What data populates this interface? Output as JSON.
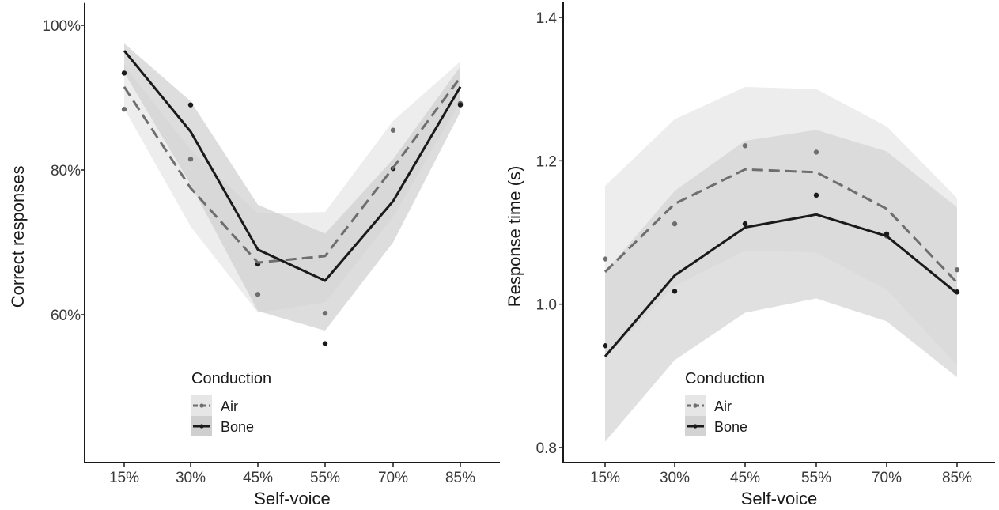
{
  "chart_data": [
    {
      "type": "line",
      "xlabel": "Self-voice",
      "ylabel": "Correct responses",
      "categories": [
        "15%",
        "30%",
        "45%",
        "55%",
        "70%",
        "85%"
      ],
      "ylim": [
        0.42,
        1.02
      ],
      "yticks": [
        0.6,
        0.8,
        1.0
      ],
      "ytick_labels": [
        "60%",
        "80%",
        "100%"
      ],
      "grid": false,
      "legend": {
        "title": "Conduction",
        "position": "bottom-left"
      },
      "series": [
        {
          "name": "Air",
          "style": "dashed",
          "color": "#6e6e6e",
          "band_color": "#e6e6e6",
          "fit": [
            0.915,
            0.775,
            0.672,
            0.681,
            0.803,
            0.928
          ],
          "lower": [
            0.885,
            0.722,
            0.603,
            0.617,
            0.735,
            0.895
          ],
          "upper": [
            0.945,
            0.828,
            0.74,
            0.742,
            0.868,
            0.95
          ],
          "points": [
            0.884,
            0.815,
            0.628,
            0.602,
            0.855,
            0.892
          ]
        },
        {
          "name": "Bone",
          "style": "solid",
          "color": "#1a1a1a",
          "band_color": "#cfcfcf",
          "fit": [
            0.965,
            0.853,
            0.69,
            0.647,
            0.757,
            0.915
          ],
          "lower": [
            0.935,
            0.78,
            0.605,
            0.578,
            0.7,
            0.88
          ],
          "upper": [
            0.975,
            0.895,
            0.752,
            0.712,
            0.815,
            0.943
          ],
          "points": [
            0.934,
            0.89,
            0.67,
            0.56,
            0.802,
            0.89
          ]
        }
      ]
    },
    {
      "type": "line",
      "xlabel": "Self-voice",
      "ylabel": "Response time (s)",
      "categories": [
        "15%",
        "30%",
        "45%",
        "55%",
        "70%",
        "85%"
      ],
      "ylim": [
        0.79,
        1.41
      ],
      "yticks": [
        0.8,
        1.0,
        1.2,
        1.4
      ],
      "ytick_labels": [
        "0.8",
        "1.0",
        "1.2",
        "1.4"
      ],
      "grid": false,
      "legend": {
        "title": "Conduction",
        "position": "bottom-center"
      },
      "series": [
        {
          "name": "Air",
          "style": "dashed",
          "color": "#6e6e6e",
          "band_color": "#e6e6e6",
          "fit": [
            1.045,
            1.14,
            1.188,
            1.184,
            1.133,
            1.03
          ],
          "lower": [
            0.925,
            1.025,
            1.075,
            1.072,
            1.02,
            0.915
          ],
          "upper": [
            1.165,
            1.258,
            1.303,
            1.3,
            1.248,
            1.148
          ],
          "points": [
            1.063,
            1.112,
            1.221,
            1.212,
            1.095,
            1.048
          ]
        },
        {
          "name": "Bone",
          "style": "solid",
          "color": "#1a1a1a",
          "band_color": "#d3d3d3",
          "fit": [
            0.927,
            1.04,
            1.107,
            1.125,
            1.095,
            1.015
          ],
          "lower": [
            0.808,
            0.922,
            0.988,
            1.008,
            0.976,
            0.898
          ],
          "upper": [
            1.045,
            1.158,
            1.228,
            1.243,
            1.213,
            1.135
          ],
          "points": [
            0.942,
            1.018,
            1.112,
            1.152,
            1.098,
            1.017
          ]
        }
      ]
    }
  ]
}
